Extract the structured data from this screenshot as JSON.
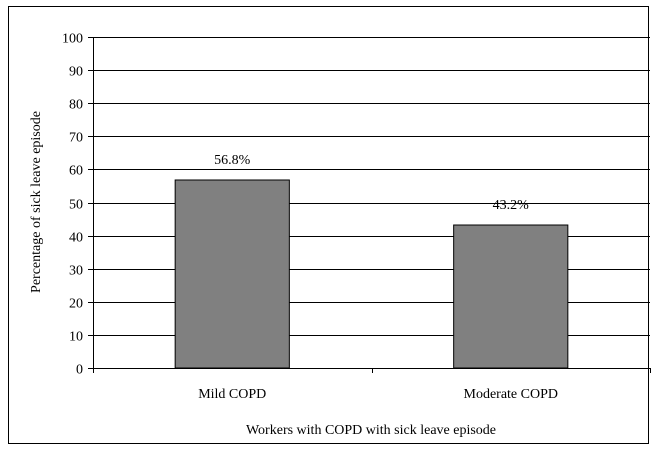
{
  "chart_data": {
    "type": "bar",
    "categories": [
      "Mild COPD",
      "Moderate COPD"
    ],
    "values": [
      56.8,
      43.2
    ],
    "data_labels": [
      "56.8%",
      "43.2%"
    ],
    "title": "",
    "xlabel": "Workers with COPD with sick leave episode",
    "ylabel": "Percentage of sick leave episode",
    "ylim": [
      0,
      100
    ],
    "yticks": [
      0,
      10,
      20,
      30,
      40,
      50,
      60,
      70,
      80,
      90,
      100
    ],
    "grid": true,
    "legend": "none",
    "bar_color": "#808080",
    "bar_edge_color": "#000000"
  }
}
